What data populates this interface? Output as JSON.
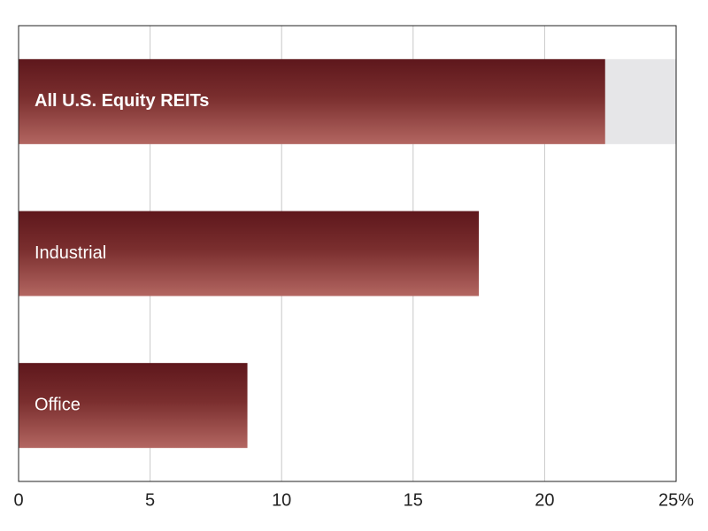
{
  "chart_data": {
    "type": "bar",
    "orientation": "horizontal",
    "categories": [
      "All U.S. Equity REITs",
      "Industrial",
      "Office"
    ],
    "values": [
      22.3,
      17.5,
      8.7
    ],
    "color": "#8a3a3a",
    "xlim": [
      0,
      25
    ],
    "xticks": [
      0,
      5,
      10,
      15,
      20,
      {
        "value": 25,
        "label": "25%"
      }
    ],
    "grid": true
  }
}
